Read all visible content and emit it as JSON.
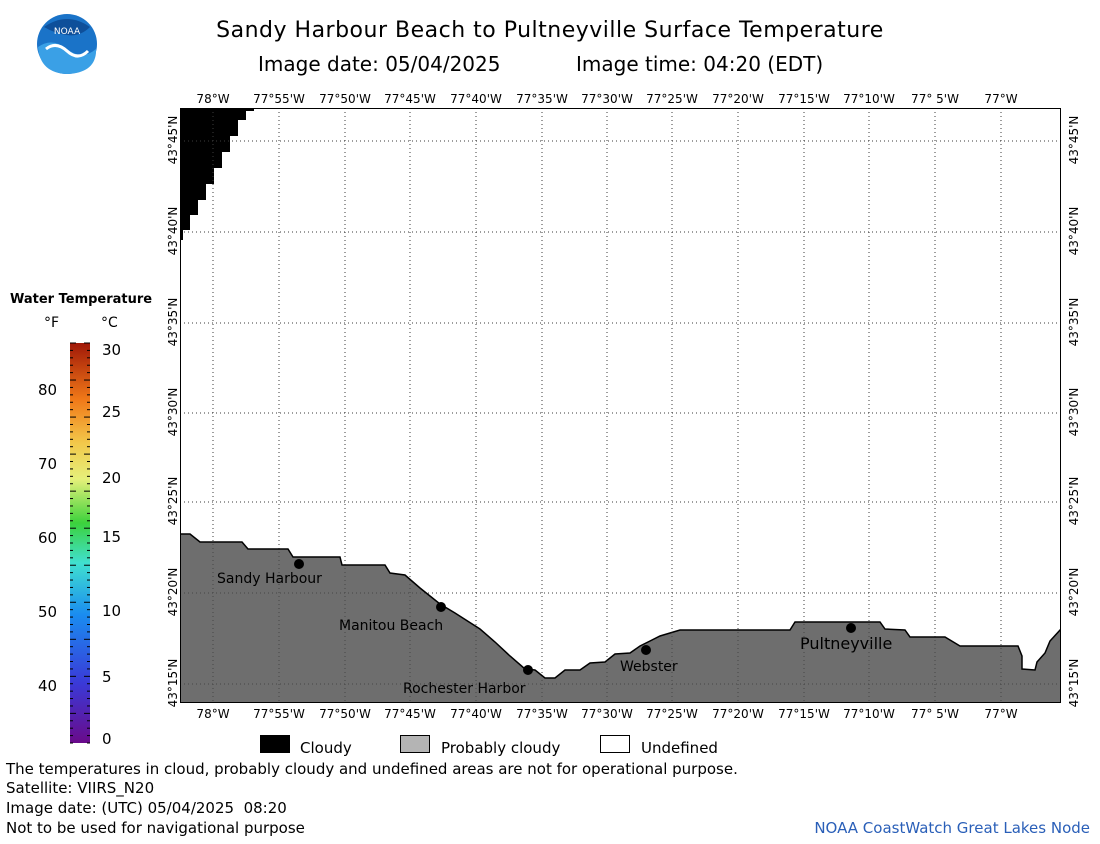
{
  "header": {
    "title": "Sandy Harbour Beach to Pultneyville Surface Temperature",
    "image_date": "Image date: 05/04/2025",
    "image_time": "Image time: 04:20 (EDT)"
  },
  "logo": {
    "text": "NOAA",
    "icon": "noaa-logo-icon"
  },
  "map": {
    "lon_labels": [
      "78°W",
      "77°55'W",
      "77°50'W",
      "77°45'W",
      "77°40'W",
      "77°35'W",
      "77°30'W",
      "77°25'W",
      "77°20'W",
      "77°15'W",
      "77°10'W",
      "77° 5'W",
      "77°W"
    ],
    "lat_labels": [
      "43°45'N",
      "43°40'N",
      "43°35'N",
      "43°30'N",
      "43°25'N",
      "43°20'N",
      "43°15'N"
    ],
    "places": [
      "Sandy Harbour",
      "Manitou Beach",
      "Rochester Harbor",
      "Webster",
      "Pultneyville"
    ],
    "colors": {
      "land": "#6e6e6e",
      "cloudy": "#000000",
      "water": "#ffffff",
      "grid": "#555555"
    }
  },
  "legend": {
    "title": "Water Temperature",
    "unit_f": "°F",
    "unit_c": "°C",
    "f_ticks": [
      "80",
      "70",
      "60",
      "50",
      "40"
    ],
    "c_ticks": [
      "30",
      "25",
      "20",
      "15",
      "10",
      "5",
      "0"
    ],
    "categories": [
      {
        "label": "Cloudy",
        "color": "#000000"
      },
      {
        "label": "Probably cloudy",
        "color": "#b4b4b4"
      },
      {
        "label": "Undefined",
        "color": "#ffffff"
      }
    ]
  },
  "footer": {
    "note": "The temperatures in cloud, probably cloudy and undefined areas are not for operational purpose.",
    "satellite": "Satellite: VIIRS_N20",
    "utc_date": "Image date: (UTC) 05/04/2025  08:20",
    "nav_warning": "Not to be used for navigational purpose",
    "credit": "NOAA CoastWatch Great Lakes Node"
  }
}
